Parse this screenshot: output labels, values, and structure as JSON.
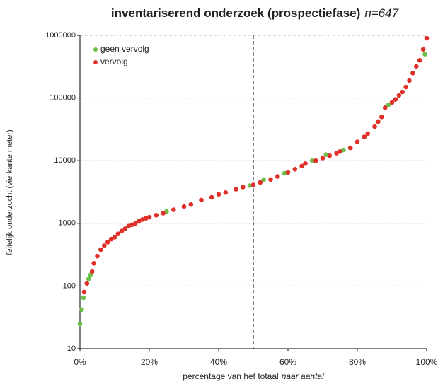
{
  "chart_data": {
    "type": "scatter",
    "title": "inventariserend onderzoek (prospectiefase)",
    "subtitle": "n=647",
    "x_label": "percentage van het totaal",
    "x_label_note": "naar aantal",
    "y_label": "feitelijk onderzocht (vierkante meter)",
    "log_y": true,
    "grid": true,
    "legend": "upper-left",
    "vline": 50,
    "xlim": [
      0,
      100
    ],
    "xticks": [
      {
        "value": 0,
        "label": "0%"
      },
      {
        "value": 20,
        "label": "20%"
      },
      {
        "value": 40,
        "label": "40%"
      },
      {
        "value": 60,
        "label": "60%"
      },
      {
        "value": 80,
        "label": "80%"
      },
      {
        "value": 100,
        "label": "100%"
      }
    ],
    "ylim": [
      10,
      1000000
    ],
    "yticks": [
      10,
      100,
      1000,
      10000,
      100000,
      1000000
    ],
    "series": [
      {
        "name": "geen vervolg",
        "color": "#6cc04a",
        "x": [
          0,
          0.5,
          1,
          2.5,
          3,
          25,
          49,
          53,
          59,
          67,
          71,
          76,
          89,
          99.5
        ],
        "values": [
          25,
          42,
          65,
          130,
          150,
          1550,
          4000,
          5000,
          6300,
          10000,
          12500,
          14800,
          78000,
          500000
        ]
      },
      {
        "name": "vervolg",
        "color": "#e0302a",
        "x": [
          1.2,
          2,
          3.5,
          4,
          5,
          6,
          7,
          8,
          9,
          10,
          11,
          12,
          13,
          14,
          15,
          16,
          17,
          18,
          19,
          20,
          22,
          24,
          27,
          30,
          32,
          35,
          38,
          40,
          42,
          45,
          47,
          50,
          52,
          55,
          57,
          60,
          62,
          64,
          65,
          68,
          70,
          72,
          74,
          75,
          78,
          80,
          82,
          83,
          85,
          86,
          87,
          88,
          90,
          91,
          92,
          93,
          94,
          95,
          96,
          97,
          98,
          99,
          100
        ],
        "values": [
          80,
          110,
          170,
          230,
          300,
          380,
          440,
          500,
          560,
          600,
          680,
          750,
          820,
          900,
          950,
          1000,
          1080,
          1150,
          1200,
          1250,
          1350,
          1450,
          1650,
          1850,
          2000,
          2350,
          2600,
          2900,
          3100,
          3500,
          3800,
          4100,
          4500,
          5000,
          5600,
          6500,
          7300,
          8200,
          9000,
          10000,
          11000,
          12000,
          13200,
          14000,
          16000,
          20000,
          24000,
          27000,
          35000,
          42000,
          50000,
          70000,
          85000,
          95000,
          110000,
          125000,
          150000,
          190000,
          250000,
          320000,
          400000,
          600000,
          900000
        ]
      }
    ]
  }
}
